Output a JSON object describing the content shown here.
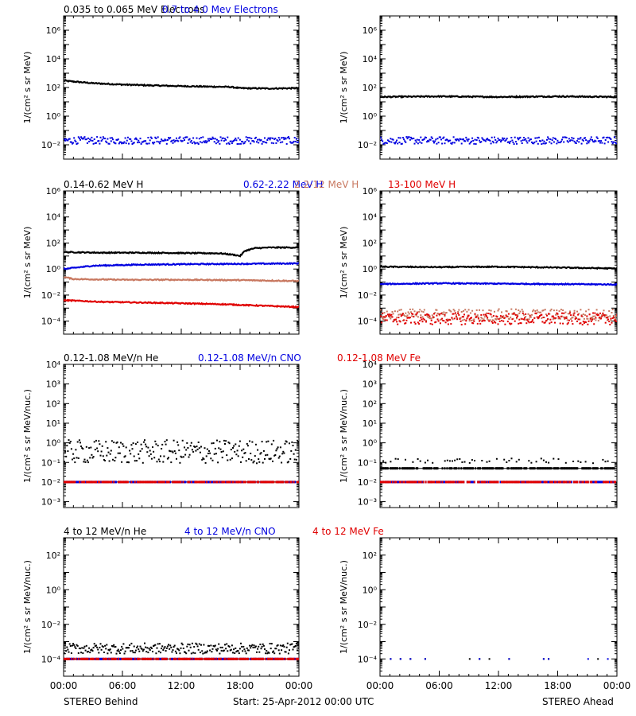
{
  "colors": {
    "black": "#000000",
    "blue": "#0000e0",
    "tan": "#c87860",
    "red": "#e00000"
  },
  "footer": {
    "left": "STEREO Behind",
    "center": "Start: 25-Apr-2012 00:00 UTC",
    "right": "STEREO Ahead"
  },
  "xticks": [
    "00:00",
    "06:00",
    "12:00",
    "18:00",
    "00:00"
  ],
  "chart_data": [
    {
      "type": "scatter",
      "panel": "electrons-behind",
      "log_y": true,
      "ylim": [
        0.001,
        10000000
      ],
      "ylabel": "1/(cm² s sr MeV)",
      "yticks": [
        {
          "exp": 6,
          "label": "10⁶"
        },
        {
          "exp": 4,
          "label": "10⁴"
        },
        {
          "exp": 2,
          "label": "10²"
        },
        {
          "exp": 0,
          "label": "10⁰"
        },
        {
          "exp": -2,
          "label": "10⁻²"
        }
      ],
      "legend": [
        {
          "text": "0.035 to 0.065 MeV Electrons",
          "color": "black"
        },
        {
          "text": "0.7 to 4.0 Mev Electrons",
          "color": "blue"
        }
      ],
      "series": [
        {
          "name": "0.035 to 0.065 MeV Electrons",
          "color": "black",
          "mode": "line",
          "points": [
            [
              0,
              300
            ],
            [
              1,
              260
            ],
            [
              3,
              200
            ],
            [
              6,
              160
            ],
            [
              9,
              140
            ],
            [
              12,
              125
            ],
            [
              15,
              115
            ],
            [
              17,
              110
            ],
            [
              18,
              90
            ],
            [
              21,
              85
            ],
            [
              24,
              90
            ]
          ]
        },
        {
          "name": "0.7 to 4.0 Mev Electrons",
          "color": "blue",
          "mode": "scatter",
          "level": 0.02,
          "spread": 0.25
        }
      ]
    },
    {
      "type": "scatter",
      "panel": "electrons-ahead",
      "log_y": true,
      "ylim": [
        0.001,
        10000000
      ],
      "ylabel": "1/(cm² s sr MeV)",
      "yticks": [
        {
          "exp": 6,
          "label": "10⁶"
        },
        {
          "exp": 4,
          "label": "10⁴"
        },
        {
          "exp": 2,
          "label": "10²"
        },
        {
          "exp": 0,
          "label": "10⁰"
        },
        {
          "exp": -2,
          "label": "10⁻²"
        }
      ],
      "legend": [],
      "series": [
        {
          "name": "0.035 to 0.065 MeV Electrons",
          "color": "black",
          "mode": "line",
          "points": [
            [
              0,
              22
            ],
            [
              6,
              24
            ],
            [
              12,
              22
            ],
            [
              18,
              24
            ],
            [
              24,
              22
            ]
          ]
        },
        {
          "name": "0.7 to 4.0 Mev Electrons",
          "color": "blue",
          "mode": "scatter",
          "level": 0.02,
          "spread": 0.25
        }
      ]
    },
    {
      "type": "scatter",
      "panel": "protons-behind",
      "log_y": true,
      "ylim": [
        1e-05,
        1000000
      ],
      "ylabel": "1/(cm² s sr MeV)",
      "yticks": [
        {
          "exp": 6,
          "label": "10⁶"
        },
        {
          "exp": 4,
          "label": "10⁴"
        },
        {
          "exp": 2,
          "label": "10²"
        },
        {
          "exp": 0,
          "label": "10⁰"
        },
        {
          "exp": -2,
          "label": "10⁻²"
        },
        {
          "exp": -4,
          "label": "10⁻⁴"
        }
      ],
      "legend": [
        {
          "text": "0.14-0.62 MeV H",
          "color": "black"
        },
        {
          "text": "0.62-2.22 MeV H",
          "color": "blue"
        },
        {
          "text": "2.2-12 MeV H",
          "color": "tan"
        },
        {
          "text": "13-100 MeV H",
          "color": "red"
        }
      ],
      "series": [
        {
          "name": "0.14-0.62 MeV H",
          "color": "black",
          "mode": "line",
          "points": [
            [
              0,
              20
            ],
            [
              4,
              18
            ],
            [
              8,
              18
            ],
            [
              12,
              17
            ],
            [
              16,
              16
            ],
            [
              17.5,
              12
            ],
            [
              18,
              10
            ],
            [
              18.5,
              25
            ],
            [
              19.5,
              40
            ],
            [
              21,
              45
            ],
            [
              24,
              45
            ]
          ]
        },
        {
          "name": "0.62-2.22 MeV H",
          "color": "blue",
          "mode": "line",
          "points": [
            [
              0,
              1.0
            ],
            [
              3,
              1.8
            ],
            [
              8,
              2.2
            ],
            [
              14,
              2.4
            ],
            [
              18,
              2.5
            ],
            [
              24,
              2.7
            ]
          ]
        },
        {
          "name": "2.2-12 MeV H",
          "color": "tan",
          "mode": "line",
          "points": [
            [
              0,
              0.25
            ],
            [
              1,
              0.17
            ],
            [
              6,
              0.15
            ],
            [
              12,
              0.15
            ],
            [
              18,
              0.14
            ],
            [
              24,
              0.12
            ]
          ]
        },
        {
          "name": "13-100 MeV H",
          "color": "red",
          "mode": "line",
          "points": [
            [
              0,
              0.004
            ],
            [
              4,
              0.003
            ],
            [
              10,
              0.0025
            ],
            [
              16,
              0.002
            ],
            [
              24,
              0.0012
            ]
          ]
        }
      ]
    },
    {
      "type": "scatter",
      "panel": "protons-ahead",
      "log_y": true,
      "ylim": [
        1e-05,
        1000000
      ],
      "ylabel": "1/(cm² s sr MeV)",
      "yticks": [
        {
          "exp": 6,
          "label": "10⁶"
        },
        {
          "exp": 4,
          "label": "10⁴"
        },
        {
          "exp": 2,
          "label": "10²"
        },
        {
          "exp": 0,
          "label": "10⁰"
        },
        {
          "exp": -2,
          "label": "10⁻²"
        },
        {
          "exp": -4,
          "label": "10⁻⁴"
        }
      ],
      "legend": [],
      "series": [
        {
          "name": "0.14-0.62 MeV H",
          "color": "black",
          "mode": "line",
          "points": [
            [
              0,
              1.5
            ],
            [
              6,
              1.4
            ],
            [
              12,
              1.5
            ],
            [
              18,
              1.3
            ],
            [
              24,
              1.1
            ]
          ]
        },
        {
          "name": "0.62-2.22 MeV H",
          "color": "blue",
          "mode": "line",
          "points": [
            [
              0,
              0.07
            ],
            [
              6,
              0.08
            ],
            [
              12,
              0.075
            ],
            [
              18,
              0.07
            ],
            [
              24,
              0.065
            ]
          ]
        },
        {
          "name": "2.2-12 MeV H",
          "color": "tan",
          "mode": "scatter",
          "level": 0.0003,
          "spread": 0.45
        },
        {
          "name": "13-100 MeV H",
          "color": "red",
          "mode": "scatter",
          "level": 0.00015,
          "spread": 0.45
        }
      ]
    },
    {
      "type": "scatter",
      "panel": "heavy-low-behind",
      "log_y": true,
      "ylim": [
        0.0005,
        10000
      ],
      "ylabel": "1/(cm² s sr MeV/nuc.)",
      "yticks": [
        {
          "exp": 4,
          "label": "10⁴"
        },
        {
          "exp": 3,
          "label": "10³"
        },
        {
          "exp": 2,
          "label": "10²"
        },
        {
          "exp": 1,
          "label": "10¹"
        },
        {
          "exp": 0,
          "label": "10⁰"
        },
        {
          "exp": -1,
          "label": "10⁻¹"
        },
        {
          "exp": -2,
          "label": "10⁻²"
        },
        {
          "exp": -3,
          "label": "10⁻³"
        }
      ],
      "legend": [
        {
          "text": "0.12-1.08 MeV/n He",
          "color": "black"
        },
        {
          "text": "0.12-1.08 MeV/n CNO",
          "color": "blue"
        },
        {
          "text": "0.12-1.08 MeV Fe",
          "color": "red"
        }
      ],
      "baseline": 0.01,
      "series": [
        {
          "name": "0.12-1.08 MeV/n He",
          "color": "black",
          "mode": "scatter",
          "level": 0.35,
          "spread": 0.6
        },
        {
          "name": "0.12-1.08 MeV/n CNO",
          "color": "blue",
          "mode": "floor",
          "level": 0.01
        },
        {
          "name": "0.12-1.08 MeV Fe",
          "color": "red",
          "mode": "floor",
          "level": 0.01
        }
      ]
    },
    {
      "type": "scatter",
      "panel": "heavy-low-ahead",
      "log_y": true,
      "ylim": [
        0.0005,
        10000
      ],
      "ylabel": "1/(cm² s sr MeV/nuc.)",
      "yticks": [
        {
          "exp": 4,
          "label": "10⁴"
        },
        {
          "exp": 3,
          "label": "10³"
        },
        {
          "exp": 2,
          "label": "10²"
        },
        {
          "exp": 1,
          "label": "10¹"
        },
        {
          "exp": 0,
          "label": "10⁰"
        },
        {
          "exp": -1,
          "label": "10⁻¹"
        },
        {
          "exp": -2,
          "label": "10⁻²"
        },
        {
          "exp": -3,
          "label": "10⁻³"
        }
      ],
      "legend": [],
      "baseline": 0.05,
      "series": [
        {
          "name": "0.12-1.08 MeV/n He",
          "color": "black",
          "mode": "floor",
          "level": 0.05,
          "extra": 0.12
        },
        {
          "name": "0.12-1.08 MeV/n CNO",
          "color": "blue",
          "mode": "floor",
          "level": 0.01
        },
        {
          "name": "0.12-1.08 MeV Fe",
          "color": "red",
          "mode": "floor",
          "level": 0.01
        }
      ]
    },
    {
      "type": "scatter",
      "panel": "heavy-high-behind",
      "log_y": true,
      "ylim": [
        1e-05,
        1000
      ],
      "ylabel": "1/(cm² s sr MeV/nuc.)",
      "yticks": [
        {
          "exp": 2,
          "label": "10²"
        },
        {
          "exp": 0,
          "label": "10⁰"
        },
        {
          "exp": -2,
          "label": "10⁻²"
        },
        {
          "exp": -4,
          "label": "10⁻⁴"
        }
      ],
      "legend": [
        {
          "text": "4 to 12 MeV/n He",
          "color": "black"
        },
        {
          "text": "4 to 12 MeV/n CNO",
          "color": "blue"
        },
        {
          "text": "4 to 12 MeV Fe",
          "color": "red"
        }
      ],
      "baseline": 0.0001,
      "series": [
        {
          "name": "4 to 12 MeV/n He",
          "color": "black",
          "mode": "scatter",
          "level": 0.0004,
          "spread": 0.3
        },
        {
          "name": "4 to 12 MeV/n CNO",
          "color": "blue",
          "mode": "floor",
          "level": 0.0001
        },
        {
          "name": "4 to 12 MeV Fe",
          "color": "red",
          "mode": "floor",
          "level": 0.0001
        }
      ]
    },
    {
      "type": "scatter",
      "panel": "heavy-high-ahead",
      "log_y": true,
      "ylim": [
        1e-05,
        1000
      ],
      "ylabel": "1/(cm² s sr MeV/nuc.)",
      "yticks": [
        {
          "exp": 2,
          "label": "10²"
        },
        {
          "exp": 0,
          "label": "10⁰"
        },
        {
          "exp": -2,
          "label": "10⁻²"
        },
        {
          "exp": -4,
          "label": "10⁻⁴"
        }
      ],
      "legend": [],
      "series": [
        {
          "name": "4 to 12 MeV/n He",
          "color": "black",
          "mode": "sparse",
          "level": 0.0001
        },
        {
          "name": "4 to 12 MeV/n CNO",
          "color": "blue",
          "mode": "sparse",
          "level": 0.0001
        }
      ]
    }
  ]
}
